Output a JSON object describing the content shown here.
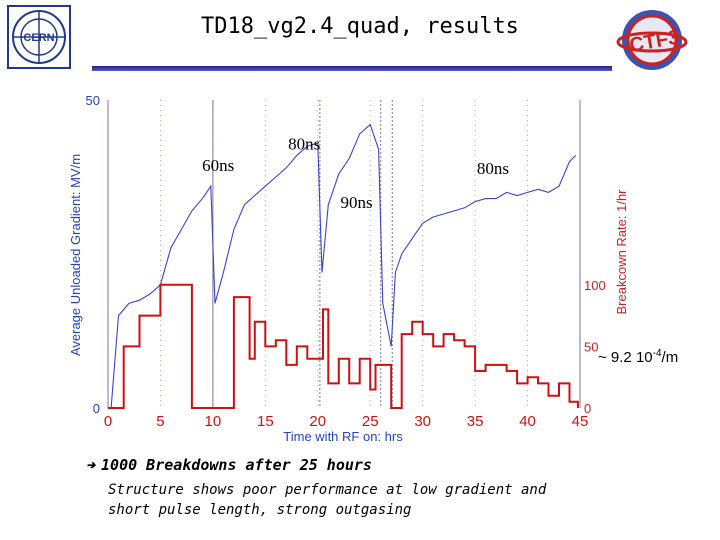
{
  "slide": {
    "title": "TD18_vg2.4_quad, results",
    "note_arrow": "➔",
    "note1": "1000 Breakdowns after 25 hours",
    "note2_line1": "Structure shows poor performance at low gradient and",
    "note2_line2": "short pulse length, strong outgasing",
    "rate_annotation_prefix": "~ 9.2 10",
    "rate_annotation_exp": "-4",
    "rate_annotation_suffix": "/m",
    "logo_left_text": "CERN",
    "logo_right_text": "CTF3"
  },
  "chart_data": {
    "type": "line",
    "xlabel": "Time with RF on: hrs",
    "ylabel": "Average Unloaded Gradient: MV/m",
    "y2label": "Breakcown Rate: 1/hr",
    "xlim": [
      0,
      45
    ],
    "ylim": [
      0,
      50
    ],
    "y2lim": [
      0,
      250
    ],
    "xticks": [
      "0",
      "5",
      "10",
      "15",
      "20",
      "25",
      "30",
      "35",
      "40",
      "45"
    ],
    "yticks": [
      "0",
      "50"
    ],
    "y2ticks": [
      "0",
      "50",
      "100"
    ],
    "colors": {
      "gradient": "#3b44c8",
      "rate": "#cc1111",
      "axes_text": "#2244bb",
      "right_axis_text": "#cc2222",
      "marker": "#7a7a99"
    },
    "annotations": [
      {
        "text": "60ns",
        "x": 10.5,
        "y": 38.5
      },
      {
        "text": "80ns",
        "x": 18.7,
        "y": 42.0
      },
      {
        "text": "90ns",
        "x": 23.7,
        "y": 32.5
      },
      {
        "text": "80ns",
        "x": 36.7,
        "y": 38.0
      }
    ],
    "pulse_markers_x": [
      10.0,
      20.2,
      26.0,
      27.1
    ],
    "series": [
      {
        "name": "Average Unloaded Gradient",
        "axis": "left",
        "x": [
          0.3,
          1,
          2,
          3,
          4,
          5,
          6,
          7,
          8,
          9,
          9.8,
          10.2,
          11,
          12,
          13,
          14,
          15,
          16,
          17,
          18,
          19,
          20,
          20.4,
          21,
          22,
          23,
          24,
          25,
          25.8,
          26.2,
          27,
          27.4,
          28,
          29,
          30,
          31,
          32,
          33,
          34,
          35,
          36,
          37,
          38,
          39,
          40,
          41,
          42,
          43,
          43.5,
          44,
          44.6
        ],
        "y": [
          0,
          15,
          17,
          17.5,
          18.5,
          20,
          26,
          29,
          32,
          34,
          36,
          17,
          22,
          29,
          33,
          34.5,
          36,
          37.5,
          39,
          41,
          42.5,
          43,
          22,
          33,
          38,
          40.5,
          44.5,
          46,
          42,
          17,
          10,
          22,
          25,
          27.5,
          30,
          31,
          31.5,
          32,
          32.5,
          33.5,
          34,
          34,
          35,
          34.5,
          35,
          35.5,
          35,
          36,
          38,
          40,
          41
        ]
      },
      {
        "name": "Breakdown Rate",
        "axis": "right",
        "x": [
          0,
          1,
          1.5,
          3,
          5,
          7,
          8,
          10,
          12,
          13.5,
          14,
          15,
          16,
          17,
          18,
          19,
          20.5,
          21,
          22,
          23,
          24,
          25,
          25.5,
          27,
          28,
          29,
          30,
          31,
          32,
          33,
          34,
          35,
          36,
          37,
          38,
          39,
          40,
          41,
          42,
          43,
          44,
          44.8
        ],
        "y": [
          0,
          0,
          50,
          75,
          100,
          100,
          0,
          0,
          90,
          40,
          70,
          50,
          55,
          35,
          50,
          40,
          80,
          20,
          40,
          20,
          40,
          15,
          35,
          0,
          60,
          70,
          60,
          50,
          60,
          55,
          50,
          30,
          35,
          35,
          30,
          20,
          25,
          20,
          10,
          20,
          5,
          0
        ]
      }
    ]
  }
}
